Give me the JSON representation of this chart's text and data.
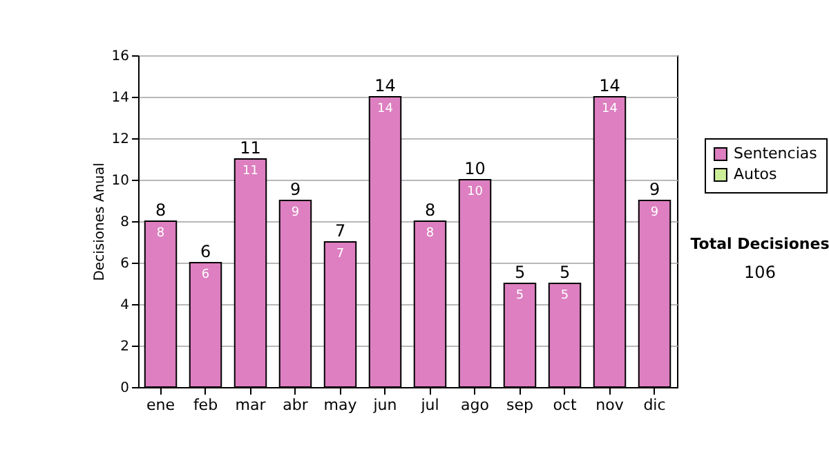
{
  "chart_data": {
    "type": "bar",
    "ylabel": "Decisiones Anual",
    "legend": "right",
    "grid": "y",
    "categories": [
      "ene",
      "feb",
      "mar",
      "abr",
      "may",
      "jun",
      "jul",
      "ago",
      "sep",
      "oct",
      "nov",
      "dic"
    ],
    "series": [
      {
        "name": "Sentencias",
        "color": "#dd7fc0",
        "values": [
          8,
          6,
          11,
          9,
          7,
          14,
          8,
          10,
          5,
          5,
          14,
          9
        ],
        "value_labels": [
          "8",
          "6",
          "11",
          "9",
          "7",
          "14",
          "8",
          "10",
          "5",
          "5",
          "14",
          "9"
        ]
      },
      {
        "name": "Autos",
        "color": "#ccee99",
        "values": [
          0,
          0,
          0,
          0,
          0,
          0,
          0,
          0,
          0,
          0,
          0,
          0
        ]
      }
    ],
    "totals": [
      "8",
      "6",
      "11",
      "9",
      "7",
      "14",
      "8",
      "10",
      "5",
      "5",
      "14",
      "9"
    ],
    "ylim": [
      0,
      16
    ],
    "yticks": [
      0,
      2,
      4,
      6,
      8,
      10,
      12,
      14,
      16
    ],
    "annotations": [
      "Total Decisiones",
      "106"
    ]
  }
}
